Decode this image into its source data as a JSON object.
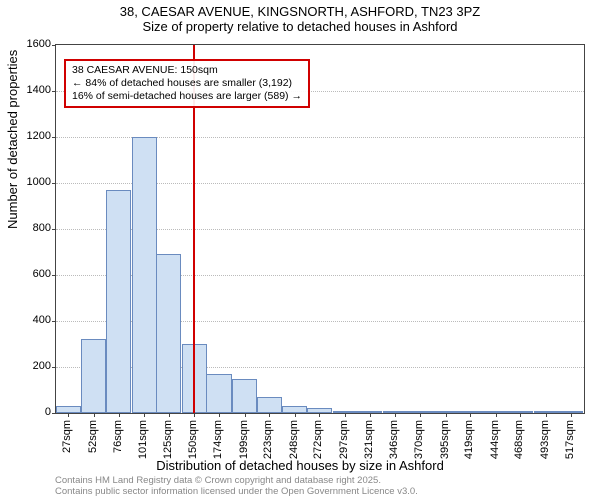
{
  "title_line1": "38, CAESAR AVENUE, KINGSNORTH, ASHFORD, TN23 3PZ",
  "title_line2": "Size of property relative to detached houses in Ashford",
  "ylabel": "Number of detached properties",
  "xlabel": "Distribution of detached houses by size in Ashford",
  "footer_line1": "Contains HM Land Registry data © Crown copyright and database right 2025.",
  "footer_line2": "Contains public sector information licensed under the Open Government Licence v3.0.",
  "chart": {
    "type": "histogram",
    "ylim": [
      0,
      1600
    ],
    "yticks": [
      0,
      200,
      400,
      600,
      800,
      1000,
      1200,
      1400,
      1600
    ],
    "xticks": [
      27,
      52,
      76,
      101,
      125,
      150,
      174,
      199,
      223,
      248,
      272,
      297,
      321,
      346,
      370,
      395,
      419,
      444,
      468,
      493,
      517
    ],
    "xtick_unit": "sqm",
    "x_domain": [
      15,
      530
    ],
    "bin_width": 24.5,
    "bar_fill": "#cfe0f3",
    "bar_stroke": "#6a8bbf",
    "grid_color": "#bbbbbb",
    "background_color": "#ffffff",
    "axis_color": "#444444",
    "label_fontsize": 13,
    "tick_fontsize": 11,
    "bins": [
      {
        "x": 27,
        "count": 30
      },
      {
        "x": 52,
        "count": 320
      },
      {
        "x": 76,
        "count": 970
      },
      {
        "x": 101,
        "count": 1200
      },
      {
        "x": 125,
        "count": 690
      },
      {
        "x": 150,
        "count": 300
      },
      {
        "x": 174,
        "count": 170
      },
      {
        "x": 199,
        "count": 150
      },
      {
        "x": 223,
        "count": 70
      },
      {
        "x": 248,
        "count": 30
      },
      {
        "x": 272,
        "count": 20
      },
      {
        "x": 297,
        "count": 10
      },
      {
        "x": 321,
        "count": 10
      },
      {
        "x": 346,
        "count": 8
      },
      {
        "x": 370,
        "count": 10
      },
      {
        "x": 395,
        "count": 6
      },
      {
        "x": 419,
        "count": 5
      },
      {
        "x": 444,
        "count": 4
      },
      {
        "x": 468,
        "count": 4
      },
      {
        "x": 493,
        "count": 3
      },
      {
        "x": 517,
        "count": 3
      }
    ],
    "reference": {
      "value": 150,
      "color": "#d00000",
      "line_width": 2,
      "annot_line1": "38 CAESAR AVENUE: 150sqm",
      "annot_line2": "← 84% of detached houses are smaller (3,192)",
      "annot_line3": "16% of semi-detached houses are larger (589) →",
      "box_border": "#d00000"
    }
  }
}
